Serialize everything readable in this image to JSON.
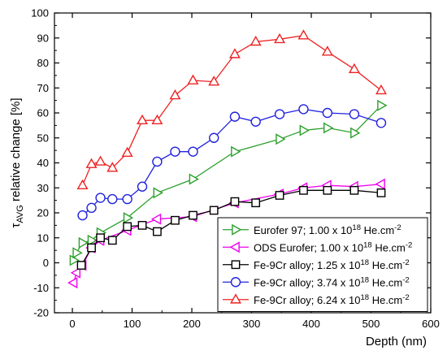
{
  "chart_data": {
    "type": "line",
    "title": "",
    "xlabel": "Depth (nm)",
    "ylabel": {
      "symbol": "τ",
      "subscript": "AVG",
      "rest": " relative change [%]"
    },
    "xlim": [
      -30,
      600
    ],
    "ylim": [
      -20,
      100
    ],
    "xticks": [
      0,
      100,
      200,
      300,
      400,
      500,
      600
    ],
    "yticks": [
      -20,
      -10,
      0,
      10,
      20,
      30,
      40,
      50,
      60,
      70,
      80,
      90,
      100
    ],
    "grid": false,
    "legend_position": "bottom-right",
    "series": [
      {
        "name": "Eurofer 97; 1.00 x 10",
        "exp": "18",
        "unit": " He.cm",
        "unit_exp": "-2",
        "color": "#2ca02c",
        "marker": "triangle-right",
        "x": [
          2,
          7,
          17,
          32,
          47,
          92,
          142,
          202,
          272,
          347,
          387,
          427,
          472,
          517
        ],
        "y": [
          1,
          4,
          8,
          9,
          12,
          18,
          28,
          33.5,
          44.5,
          49.5,
          53,
          54,
          52,
          63
        ]
      },
      {
        "name": "ODS Eurofer; 1.00 x 10",
        "exp": "18",
        "unit": " He.cm",
        "unit_exp": "-2",
        "color": "#ee00ee",
        "marker": "triangle-left",
        "x": [
          2,
          7,
          17,
          32,
          47,
          92,
          142,
          202,
          272,
          347,
          387,
          427,
          472,
          517
        ],
        "y": [
          -8,
          -4,
          -1,
          6,
          9,
          13,
          17.5,
          18.5,
          24,
          27.5,
          30,
          31,
          30.5,
          31.5
        ]
      },
      {
        "name": "Fe-9Cr alloy; 1.25 x 10",
        "exp": "18",
        "unit": " He.cm",
        "unit_exp": "-2",
        "color": "#000000",
        "marker": "square",
        "x": [
          15,
          32,
          47,
          67,
          92,
          117,
          142,
          172,
          202,
          237,
          272,
          307,
          347,
          387,
          427,
          472,
          517
        ],
        "y": [
          -1,
          6,
          10,
          9,
          14.5,
          15,
          12.5,
          17,
          19,
          21,
          24.5,
          24,
          27,
          29,
          29,
          29,
          28
        ]
      },
      {
        "name": "Fe-9Cr alloy; 3.74 x 10",
        "exp": "18",
        "unit": " He.cm",
        "unit_exp": "-2",
        "color": "#2222dd",
        "marker": "circle",
        "x": [
          17,
          32,
          47,
          67,
          92,
          117,
          142,
          172,
          202,
          237,
          272,
          307,
          347,
          387,
          427,
          472,
          517
        ],
        "y": [
          19,
          22,
          26,
          25.5,
          25.5,
          30.5,
          40.5,
          44.5,
          44.5,
          50,
          58.5,
          56.5,
          59.5,
          61.5,
          60,
          59.5,
          56
        ]
      },
      {
        "name": "Fe-9Cr alloy; 6.24 x 10",
        "exp": "18",
        "unit": " He.cm",
        "unit_exp": "-2",
        "color": "#ee2222",
        "marker": "triangle-up",
        "x": [
          17,
          32,
          47,
          67,
          92,
          117,
          142,
          172,
          202,
          237,
          272,
          307,
          347,
          387,
          427,
          472,
          517
        ],
        "y": [
          31,
          39.5,
          40.5,
          38,
          44,
          57,
          57,
          67,
          73,
          72.5,
          83.5,
          88.5,
          89.5,
          91,
          84.5,
          77.5,
          69
        ]
      }
    ]
  }
}
